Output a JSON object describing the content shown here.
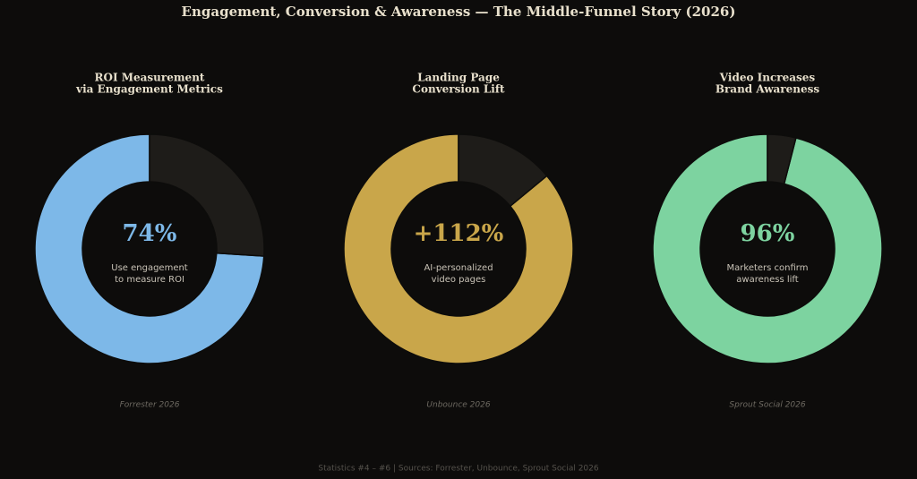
{
  "title": "Engagement, Conversion & Awareness — The Middle-Funnel Story (2026)",
  "footer": "Statistics #4 – #6  |  Sources: Forrester, Unbounce, Sprout Social 2026",
  "chart_data": [
    {
      "type": "donut",
      "title": [
        "ROI Measurement",
        "via Engagement Metrics"
      ],
      "headline": "74%",
      "caption": [
        "Use engagement",
        "to measure ROI"
      ],
      "source": "Forrester 2026",
      "categories": [
        null,
        null
      ],
      "values": [
        74,
        26
      ],
      "colors": [
        "#7db8e8",
        "#1e1c19"
      ]
    },
    {
      "type": "donut",
      "title": [
        "Landing Page",
        "Conversion Lift"
      ],
      "headline": "+112%",
      "caption": [
        "AI-personalized",
        "video pages"
      ],
      "source": "Unbounce 2026",
      "categories": [
        null,
        null
      ],
      "values": [
        86,
        14
      ],
      "colors": [
        "#c9a64a",
        "#1e1c19"
      ]
    },
    {
      "type": "donut",
      "title": [
        "Video Increases",
        "Brand Awareness"
      ],
      "headline": "96%",
      "caption": [
        "Marketers confirm",
        "awareness lift"
      ],
      "source": "Sprout Social 2026",
      "categories": [
        null,
        null
      ],
      "values": [
        96,
        4
      ],
      "colors": [
        "#7dd3a0",
        "#1e1c19"
      ]
    }
  ]
}
